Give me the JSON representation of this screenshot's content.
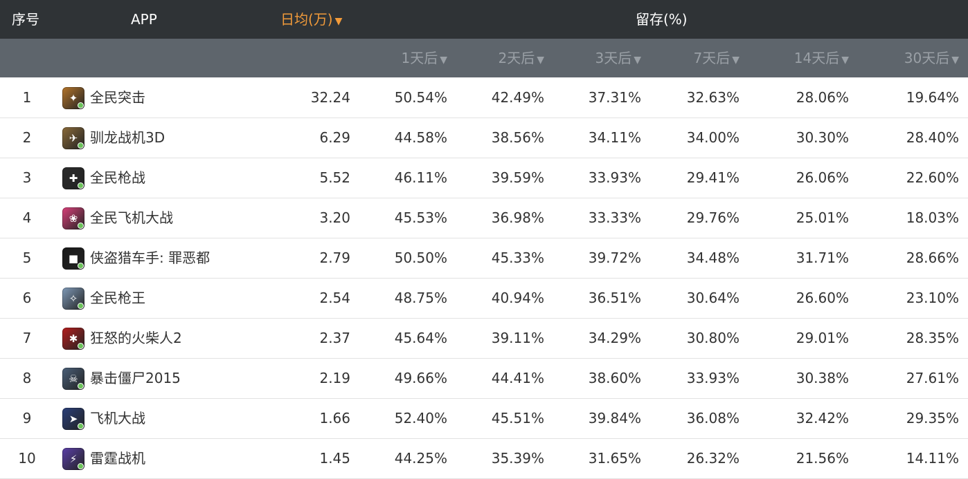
{
  "header": {
    "rank_label": "序号",
    "app_label": "APP",
    "daily_label": "日均(万)",
    "retention_label": "留存(%)",
    "sort_glyph": "▼"
  },
  "subheader": {
    "day1": "1天后",
    "day2": "2天后",
    "day3": "3天后",
    "day7": "7天后",
    "day14": "14天后",
    "day30": "30天后"
  },
  "colors": {
    "header_bg": "#2f3336",
    "subheader_bg": "#5e656c",
    "accent": "#f29b3a"
  },
  "rows": [
    {
      "rank": "1",
      "name": "全民突击",
      "icon": "soldier-game-icon",
      "daily": "32.24",
      "r1": "50.54%",
      "r2": "42.49%",
      "r3": "37.31%",
      "r7": "32.63%",
      "r14": "28.06%",
      "r30": "19.64%"
    },
    {
      "rank": "2",
      "name": "驯龙战机3D",
      "icon": "dragon-game-icon",
      "daily": "6.29",
      "r1": "44.58%",
      "r2": "38.56%",
      "r3": "34.11%",
      "r7": "34.00%",
      "r14": "30.30%",
      "r30": "28.40%"
    },
    {
      "rank": "3",
      "name": "全民枪战",
      "icon": "gunner-game-icon",
      "daily": "5.52",
      "r1": "46.11%",
      "r2": "39.59%",
      "r3": "33.93%",
      "r7": "29.41%",
      "r14": "26.06%",
      "r30": "22.60%"
    },
    {
      "rank": "4",
      "name": "全民飞机大战",
      "icon": "anime-pilot-game-icon",
      "daily": "3.20",
      "r1": "45.53%",
      "r2": "36.98%",
      "r3": "33.33%",
      "r7": "29.76%",
      "r14": "25.01%",
      "r30": "18.03%"
    },
    {
      "rank": "5",
      "name": "侠盗猎车手: 罪恶都",
      "icon": "gta-game-icon",
      "daily": "2.79",
      "r1": "50.50%",
      "r2": "45.33%",
      "r3": "39.72%",
      "r7": "34.48%",
      "r14": "31.71%",
      "r30": "28.66%"
    },
    {
      "rank": "6",
      "name": "全民枪王",
      "icon": "sniper-game-icon",
      "daily": "2.54",
      "r1": "48.75%",
      "r2": "40.94%",
      "r3": "36.51%",
      "r7": "30.64%",
      "r14": "26.60%",
      "r30": "23.10%"
    },
    {
      "rank": "7",
      "name": "狂怒的火柴人2",
      "icon": "stickman-game-icon",
      "daily": "2.37",
      "r1": "45.64%",
      "r2": "39.11%",
      "r3": "34.29%",
      "r7": "30.80%",
      "r14": "29.01%",
      "r30": "28.35%"
    },
    {
      "rank": "8",
      "name": "暴击僵尸2015",
      "icon": "zombie-game-icon",
      "daily": "2.19",
      "r1": "49.66%",
      "r2": "44.41%",
      "r3": "38.60%",
      "r7": "33.93%",
      "r14": "30.38%",
      "r30": "27.61%"
    },
    {
      "rank": "9",
      "name": "飞机大战",
      "icon": "jet-game-icon",
      "daily": "1.66",
      "r1": "52.40%",
      "r2": "45.51%",
      "r3": "39.84%",
      "r7": "36.08%",
      "r14": "32.42%",
      "r30": "29.35%"
    },
    {
      "rank": "10",
      "name": "雷霆战机",
      "icon": "thunder-jet-game-icon",
      "daily": "1.45",
      "r1": "44.25%",
      "r2": "35.39%",
      "r3": "31.65%",
      "r7": "26.32%",
      "r14": "21.56%",
      "r30": "14.11%"
    }
  ]
}
